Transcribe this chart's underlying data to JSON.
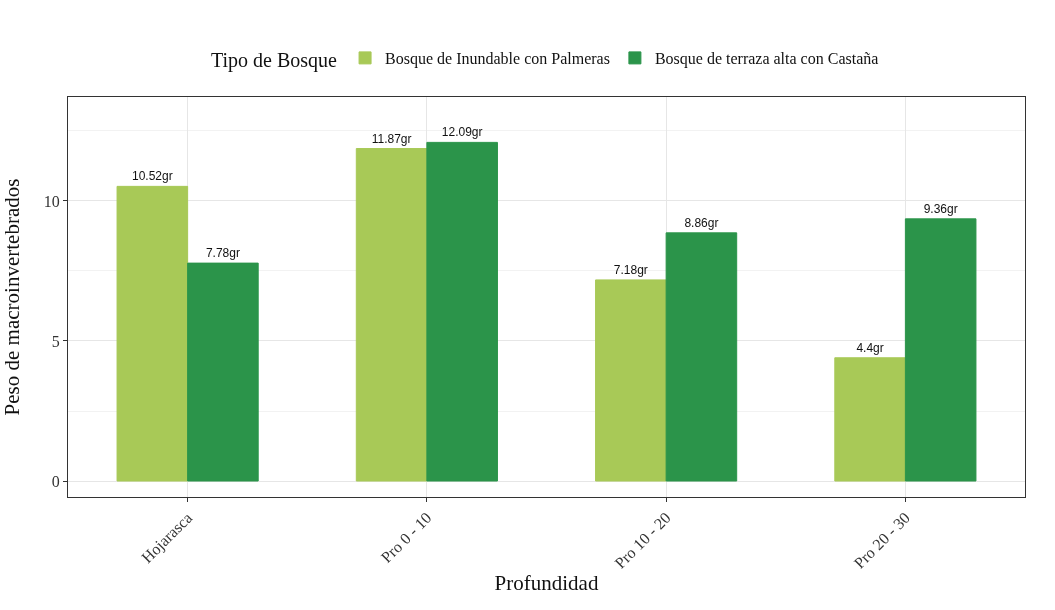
{
  "chart_data": {
    "type": "bar",
    "xlabel": "Profundidad",
    "ylabel": "Peso de macroinvertebrados",
    "legend_title": "Tipo de Bosque",
    "categories": [
      "Hojarasca",
      "Pro 0 - 10",
      "Pro 10 - 20",
      "Pro 20 - 30"
    ],
    "series": [
      {
        "name": "Bosque de Inundable con Palmeras",
        "color": "#a8c957",
        "values": [
          10.52,
          11.87,
          7.18,
          4.4
        ],
        "value_labels": [
          "10.52gr",
          "11.87gr",
          "7.18gr",
          "4.4gr"
        ]
      },
      {
        "name": "Bosque de terraza alta con Castaña",
        "color": "#2b944a",
        "values": [
          7.78,
          12.09,
          8.86,
          9.36
        ],
        "value_labels": [
          "7.78gr",
          "12.09gr",
          "8.86gr",
          "9.36gr"
        ]
      }
    ],
    "ylim": [
      -0.57,
      13.71
    ],
    "yticks": [
      0,
      5,
      10
    ],
    "grid": true,
    "legend": "top"
  }
}
